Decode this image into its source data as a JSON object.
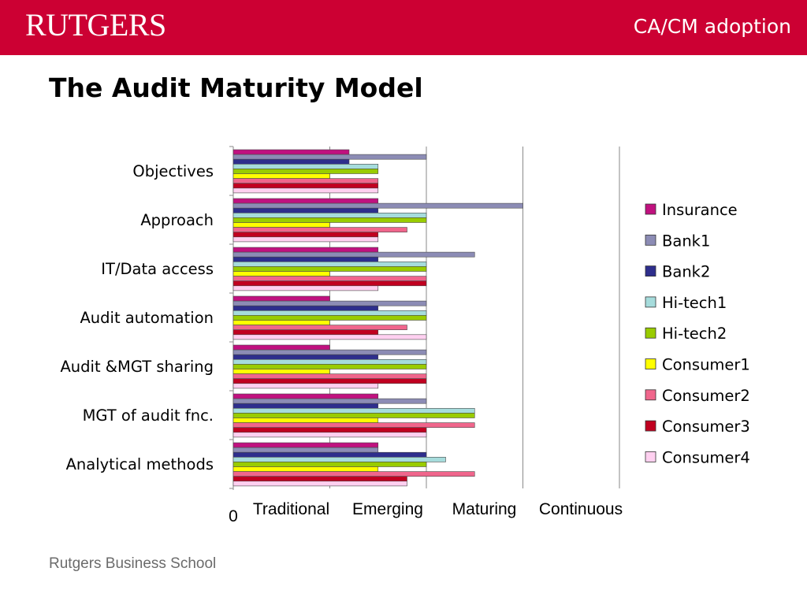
{
  "header": {
    "logo_text": "RUTGERS",
    "title": "CA/CM adoption"
  },
  "slide": {
    "title": "The Audit Maturity Model",
    "footer": "Rutgers Business School"
  },
  "chart_data": {
    "type": "bar",
    "orientation": "horizontal",
    "categories": [
      "Objectives",
      "Approach",
      "IT/Data access",
      "Audit automation",
      "Audit &MGT sharing",
      "MGT of audit fnc.",
      "Analytical methods"
    ],
    "x_zero_label": "0",
    "x_level_labels": [
      "Traditional",
      "Emerging",
      "Maturing",
      "Continuous"
    ],
    "xlim": [
      0,
      4
    ],
    "grid": true,
    "legend_position": "right",
    "series": [
      {
        "name": "Insurance",
        "color": "#c0117f",
        "values": [
          1.2,
          1.5,
          1.5,
          1.0,
          1.0,
          1.5,
          1.5
        ]
      },
      {
        "name": "Bank1",
        "color": "#8c8cb5",
        "values": [
          2.0,
          3.0,
          2.5,
          2.0,
          2.0,
          2.0,
          1.5
        ]
      },
      {
        "name": "Bank2",
        "color": "#2e2e8c",
        "values": [
          1.2,
          1.5,
          1.5,
          1.5,
          1.5,
          1.5,
          2.0
        ]
      },
      {
        "name": "Hi-tech1",
        "color": "#a6dcdc",
        "values": [
          1.5,
          2.0,
          2.0,
          2.0,
          2.0,
          2.5,
          2.2
        ]
      },
      {
        "name": "Hi-tech2",
        "color": "#99cc00",
        "values": [
          1.5,
          2.0,
          2.0,
          2.0,
          2.0,
          2.5,
          2.0
        ]
      },
      {
        "name": "Consumer1",
        "color": "#ffff00",
        "values": [
          1.0,
          1.0,
          1.0,
          1.0,
          1.0,
          1.5,
          1.5
        ]
      },
      {
        "name": "Consumer2",
        "color": "#f0668c",
        "values": [
          1.5,
          1.8,
          2.0,
          1.8,
          2.0,
          2.5,
          2.5
        ]
      },
      {
        "name": "Consumer3",
        "color": "#c00020",
        "values": [
          1.5,
          1.5,
          2.0,
          1.5,
          2.0,
          2.0,
          1.8
        ]
      },
      {
        "name": "Consumer4",
        "color": "#ffd0f0",
        "values": [
          1.5,
          1.5,
          1.5,
          2.0,
          1.5,
          2.0,
          1.8
        ]
      }
    ]
  }
}
